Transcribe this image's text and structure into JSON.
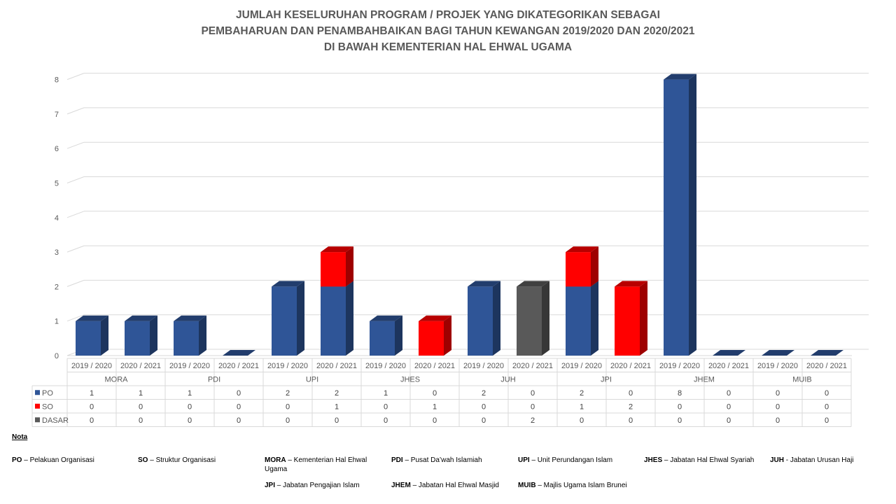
{
  "title_lines": [
    "JUMLAH KESELURUHAN PROGRAM / PROJEK YANG DIKATEGORIKAN SEBAGAI",
    "PEMBAHARUAN DAN PENAMBAHBAIKAN  BAGI TAHUN KEWANGAN 2019/2020 DAN 2020/2021",
    "DI BAWAH KEMENTERIAN HAL EHWAL UGAMA"
  ],
  "chart_data": {
    "type": "bar",
    "stacked": true,
    "three_d": true,
    "ylim": [
      0,
      8
    ],
    "yticks": [
      "0",
      "1",
      "2",
      "3",
      "4",
      "5",
      "6",
      "7",
      "8"
    ],
    "groups": [
      "MORA",
      "PDI",
      "UPI",
      "JHES",
      "JUH",
      "JPI",
      "JHEM",
      "MUIB"
    ],
    "categories": [
      "2019 / 2020",
      "2020 / 2021",
      "2019 / 2020",
      "2020 / 2021",
      "2019 / 2020",
      "2020 / 2021",
      "2019 / 2020",
      "2020 / 2021",
      "2019 / 2020",
      "2020 / 2021",
      "2019 / 2020",
      "2020 / 2021",
      "2019 / 2020",
      "2020 / 2021",
      "2019 / 2020",
      "2020 / 2021"
    ],
    "series": [
      {
        "name": "PO",
        "color": "#2f5597",
        "values": [
          1,
          1,
          1,
          0,
          2,
          2,
          1,
          0,
          2,
          0,
          2,
          0,
          8,
          0,
          0,
          0
        ]
      },
      {
        "name": "SO",
        "color": "#ff0000",
        "values": [
          0,
          0,
          0,
          0,
          0,
          1,
          0,
          1,
          0,
          0,
          1,
          2,
          0,
          0,
          0,
          0
        ]
      },
      {
        "name": "DASAR",
        "color": "#595959",
        "values": [
          0,
          0,
          0,
          0,
          0,
          0,
          0,
          0,
          0,
          2,
          0,
          0,
          0,
          0,
          0,
          0
        ]
      }
    ],
    "grid": true,
    "legend": "data-table"
  },
  "notes": {
    "heading": "Nota",
    "items": [
      {
        "abbr": "PO",
        "text": " – Pelakuan Organisasi"
      },
      {
        "abbr": "SO",
        "text": " – Struktur Organisasi"
      },
      {
        "abbr": "MORA",
        "text": " – Kementerian Hal Ehwal Ugama"
      },
      {
        "abbr": "PDI",
        "text": " – Pusat Da’wah Islamiah"
      },
      {
        "abbr": "UPI",
        "text": " – Unit Perundangan Islam"
      },
      {
        "abbr": "JHES",
        "text": " – Jabatan Hal Ehwal Syariah"
      },
      {
        "abbr": "JUH",
        "text": "  - Jabatan Urusan Haji"
      },
      {
        "abbr": "JPI",
        "text": " – Jabatan Pengajian Islam"
      },
      {
        "abbr": "JHEM",
        "text": " – Jabatan Hal Ehwal Masjid"
      },
      {
        "abbr": "MUIB",
        "text": " – Majlis Ugama Islam Brunei"
      }
    ]
  }
}
